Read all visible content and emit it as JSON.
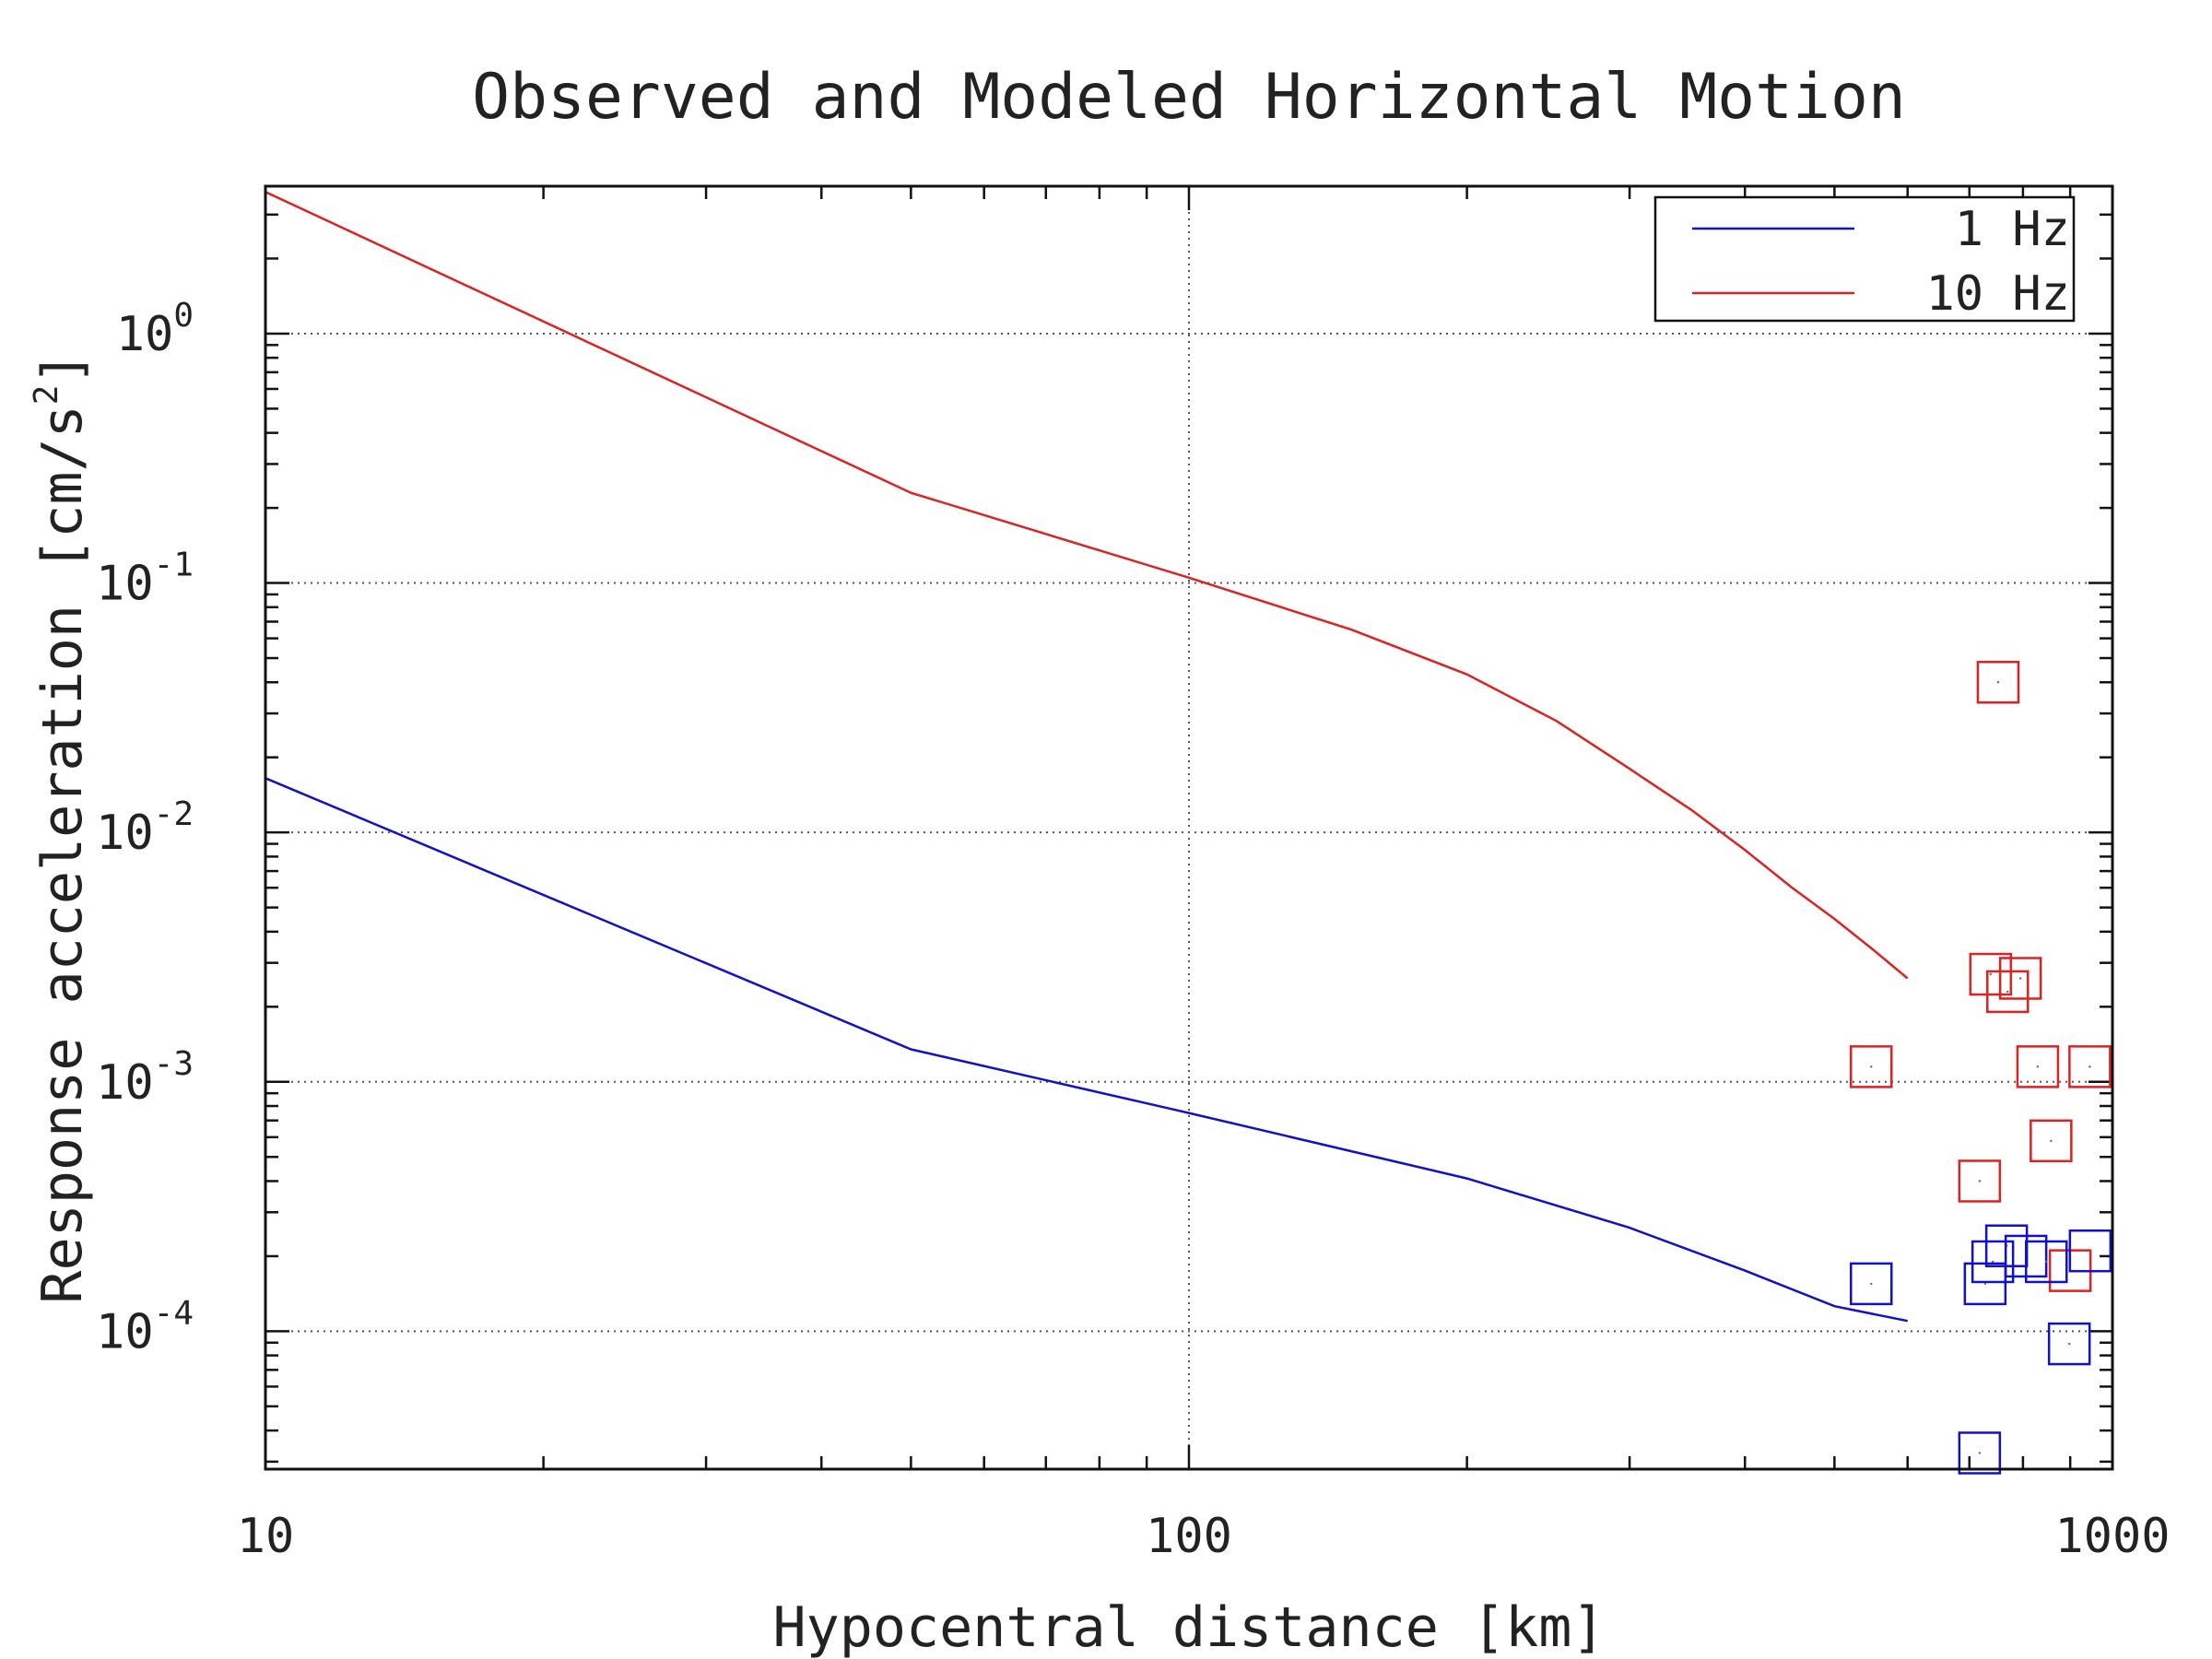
{
  "chart_data": {
    "type": "line",
    "title": "Observed and Modeled Horizontal Motion",
    "xlabel": "Hypocentral distance [km]",
    "ylabel": "Response acceleration [cm/s",
    "ylabel_sup": "2",
    "ylabel_end": "]",
    "x_scale": "log",
    "y_scale": "log",
    "xlim": [
      10,
      1000
    ],
    "ylim": [
      2.8e-05,
      3.9
    ],
    "x_ticks": [
      {
        "value": 10,
        "label": "10"
      },
      {
        "value": 100,
        "label": "100"
      },
      {
        "value": 1000,
        "label": "1000"
      }
    ],
    "y_ticks": [
      {
        "value": 1,
        "base": "10",
        "exp": "0"
      },
      {
        "value": 0.1,
        "base": "10",
        "exp": "-1"
      },
      {
        "value": 0.01,
        "base": "10",
        "exp": "-2"
      },
      {
        "value": 0.001,
        "base": "10",
        "exp": "-3"
      },
      {
        "value": 0.0001,
        "base": "10",
        "exp": "-4"
      }
    ],
    "grid": true,
    "legend": "top-right",
    "series": [
      {
        "name": "1 Hz",
        "color": "#1111cc",
        "x": [
          10,
          50,
          100,
          200,
          300,
          400,
          500,
          600
        ],
        "y": [
          0.0165,
          0.00135,
          0.00075,
          0.00041,
          0.00026,
          0.000175,
          0.000126,
          0.00011
        ]
      },
      {
        "name": "10 Hz",
        "color": "#dd2222",
        "x": [
          10,
          50,
          100,
          150,
          200,
          250,
          300,
          350,
          400,
          450,
          500,
          550,
          600
        ],
        "y": [
          3.7,
          0.23,
          0.105,
          0.065,
          0.043,
          0.028,
          0.018,
          0.0123,
          0.0085,
          0.006,
          0.0045,
          0.0034,
          0.0026
        ]
      }
    ],
    "observed": [
      {
        "series": "10 Hz",
        "color": "#dd2222",
        "points": [
          {
            "x": 752,
            "y": 0.04
          },
          {
            "x": 548,
            "y": 0.00115
          },
          {
            "x": 738,
            "y": 0.0027
          },
          {
            "x": 770,
            "y": 0.0023
          },
          {
            "x": 795,
            "y": 0.0026
          },
          {
            "x": 830,
            "y": 0.00115
          },
          {
            "x": 945,
            "y": 0.00115
          },
          {
            "x": 858,
            "y": 0.00058
          },
          {
            "x": 718,
            "y": 0.0004
          },
          {
            "x": 900,
            "y": 0.000175
          }
        ]
      },
      {
        "series": "1 Hz",
        "color": "#1111cc",
        "points": [
          {
            "x": 548,
            "y": 0.000155
          },
          {
            "x": 768,
            "y": 0.00022
          },
          {
            "x": 742,
            "y": 0.00019
          },
          {
            "x": 728,
            "y": 0.000155
          },
          {
            "x": 806,
            "y": 0.0002
          },
          {
            "x": 848,
            "y": 0.00019
          },
          {
            "x": 946,
            "y": 0.00021
          },
          {
            "x": 898,
            "y": 8.9e-05
          },
          {
            "x": 718,
            "y": 3.25e-05
          }
        ]
      }
    ]
  }
}
